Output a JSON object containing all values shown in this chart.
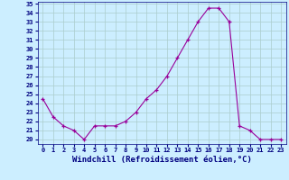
{
  "x": [
    0,
    1,
    2,
    3,
    4,
    5,
    6,
    7,
    8,
    9,
    10,
    11,
    12,
    13,
    14,
    15,
    16,
    17,
    18,
    19,
    20,
    21,
    22,
    23
  ],
  "y": [
    24.5,
    22.5,
    21.5,
    21.0,
    20.0,
    21.5,
    21.5,
    21.5,
    22.0,
    23.0,
    24.5,
    25.5,
    27.0,
    29.0,
    31.0,
    33.0,
    34.5,
    34.5,
    33.0,
    21.5,
    21.0,
    20.0,
    20.0,
    20.0
  ],
  "line_color": "#990099",
  "marker": "+",
  "marker_color": "#990099",
  "bg_color": "#cceeff",
  "grid_color": "#aacccc",
  "xlabel": "Windchill (Refroidissement éolien,°C)",
  "xlim": [
    -0.5,
    23.5
  ],
  "ylim": [
    19.5,
    35.2
  ],
  "yticks": [
    20,
    21,
    22,
    23,
    24,
    25,
    26,
    27,
    28,
    29,
    30,
    31,
    32,
    33,
    34,
    35
  ],
  "xticks": [
    0,
    1,
    2,
    3,
    4,
    5,
    6,
    7,
    8,
    9,
    10,
    11,
    12,
    13,
    14,
    15,
    16,
    17,
    18,
    19,
    20,
    21,
    22,
    23
  ],
  "xlabel_color": "#000080",
  "tick_color": "#000080",
  "xlabel_fontsize": 6.5,
  "tick_fontsize": 5.0
}
